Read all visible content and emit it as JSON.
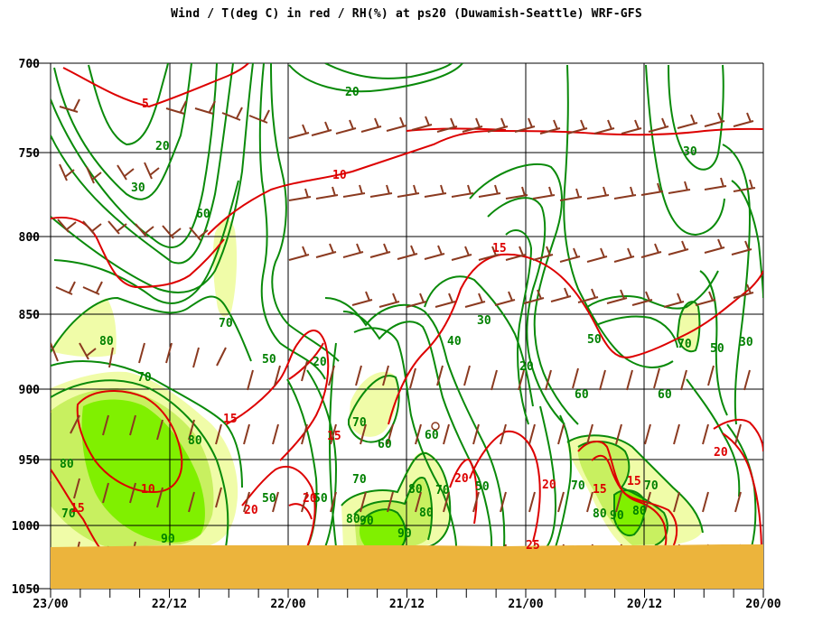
{
  "chart_data": {
    "type": "meteogram",
    "title": "Wind / T(deg C) in red / RH(%) at ps20 (Duwamish-Seattle)  WRF-GFS",
    "x_ticks": [
      "23/00",
      "22/12",
      "22/00",
      "21/12",
      "21/00",
      "20/12",
      "20/00"
    ],
    "y_ticks": [
      700,
      750,
      800,
      850,
      900,
      950,
      1000,
      1050
    ],
    "ylim": [
      700,
      1050
    ],
    "y_axis_reversed": true,
    "time_axis_direction": "newest-left",
    "grid": true,
    "terrain_surface_hPa": 1015,
    "colors": {
      "temperature": "#dd0000",
      "relative_humidity": "#008000",
      "rh_fill_70": "#f0fca8",
      "rh_fill_80": "#c8f060",
      "rh_fill_90": "#80f000",
      "wind_barb": "#8b3a20",
      "terrain": "#ecb43c"
    },
    "temperature_contour_labels": [
      "5",
      "10",
      "15",
      "15",
      "15",
      "20",
      "20",
      "20",
      "25",
      "10",
      "15",
      "20",
      "25"
    ],
    "rh_contour_labels": [
      "20",
      "20",
      "30",
      "60",
      "70",
      "80",
      "70",
      "80",
      "90",
      "50",
      "50",
      "20",
      "70",
      "60",
      "80",
      "90",
      "70",
      "80",
      "90",
      "50",
      "20",
      "60",
      "70",
      "80",
      "30",
      "40",
      "20",
      "50",
      "60",
      "70",
      "80",
      "90",
      "70",
      "80",
      "30",
      "50",
      "60",
      "70",
      "80",
      "30",
      "50",
      "30",
      "70"
    ],
    "series": [
      {
        "name": "T(deg C)",
        "kind": "contour",
        "levels": [
          5,
          10,
          15,
          20,
          25
        ]
      },
      {
        "name": "RH(%)",
        "kind": "contour",
        "levels": [
          20,
          30,
          40,
          50,
          60,
          70,
          80,
          90
        ]
      },
      {
        "name": "Wind",
        "kind": "barbs"
      }
    ]
  }
}
